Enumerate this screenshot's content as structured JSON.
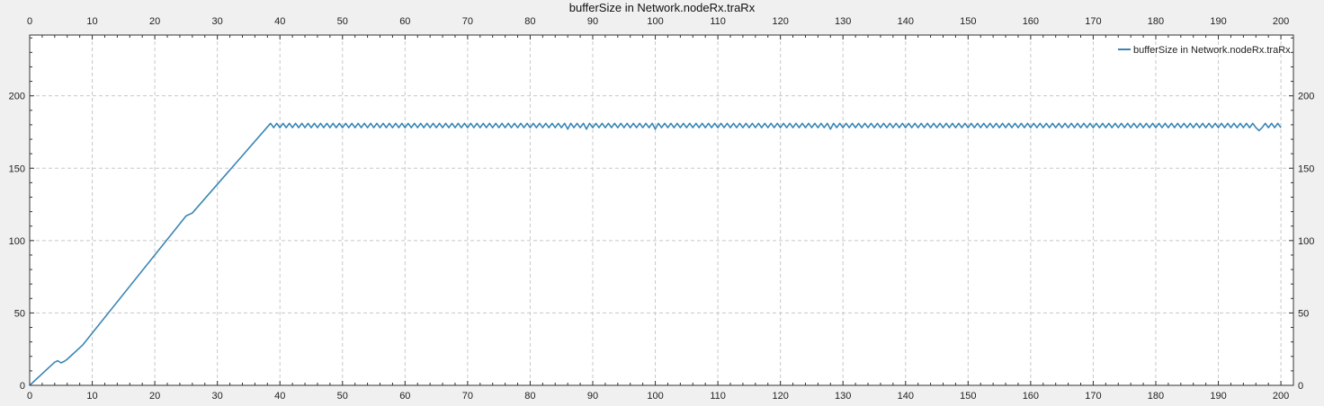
{
  "chart_data": {
    "type": "line",
    "title": "bufferSize in Network.nodeRx.traRx",
    "xlabel": "",
    "ylabel": "",
    "xlim": [
      0,
      202
    ],
    "ylim": [
      0,
      242
    ],
    "x_ticks": [
      0,
      10,
      20,
      30,
      40,
      50,
      60,
      70,
      80,
      90,
      100,
      110,
      120,
      130,
      140,
      150,
      160,
      170,
      180,
      190,
      200
    ],
    "y_ticks": [
      0,
      50,
      100,
      150,
      200
    ],
    "grid": true,
    "legend_position": "top-right",
    "series": [
      {
        "name": "bufferSize in Network.nodeRx.traRx",
        "color": "#3a86b4",
        "points": [
          [
            0,
            0
          ],
          [
            4,
            16
          ],
          [
            4.5,
            17
          ],
          [
            5,
            15.5
          ],
          [
            5.5,
            16.5
          ],
          [
            6,
            18
          ],
          [
            8.5,
            28
          ],
          [
            25,
            117
          ],
          [
            26,
            119
          ],
          [
            38.5,
            181
          ],
          [
            39,
            178
          ]
        ],
        "plateau": {
          "x_start": 39,
          "x_end": 200,
          "high": 181,
          "low": 178,
          "period": 1.0
        },
        "dips": [
          [
            86,
            177
          ],
          [
            89,
            177
          ],
          [
            100,
            177
          ],
          [
            128,
            177
          ],
          [
            196.5,
            176
          ]
        ]
      }
    ]
  }
}
